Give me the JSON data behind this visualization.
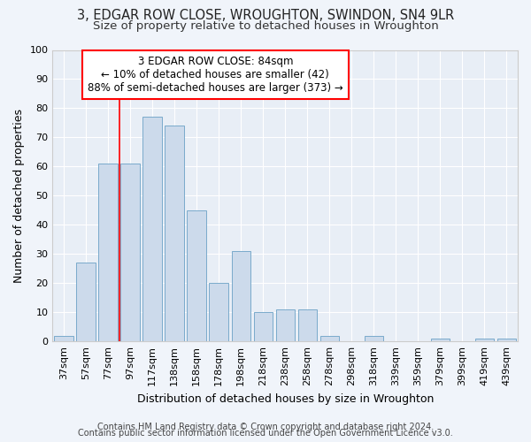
{
  "title": "3, EDGAR ROW CLOSE, WROUGHTON, SWINDON, SN4 9LR",
  "subtitle": "Size of property relative to detached houses in Wroughton",
  "xlabel": "Distribution of detached houses by size in Wroughton",
  "ylabel": "Number of detached properties",
  "bar_color": "#ccdaeb",
  "bar_edge_color": "#7aaacb",
  "background_color": "#f0f4fa",
  "plot_bg_color": "#e8eef6",
  "categories": [
    "37sqm",
    "57sqm",
    "77sqm",
    "97sqm",
    "117sqm",
    "138sqm",
    "158sqm",
    "178sqm",
    "198sqm",
    "218sqm",
    "238sqm",
    "258sqm",
    "278sqm",
    "298sqm",
    "318sqm",
    "339sqm",
    "359sqm",
    "379sqm",
    "399sqm",
    "419sqm",
    "439sqm"
  ],
  "values": [
    2,
    27,
    61,
    61,
    77,
    74,
    45,
    20,
    31,
    10,
    11,
    11,
    2,
    0,
    2,
    0,
    0,
    1,
    0,
    1,
    1
  ],
  "ylim": [
    0,
    100
  ],
  "yticks": [
    0,
    10,
    20,
    30,
    40,
    50,
    60,
    70,
    80,
    90,
    100
  ],
  "property_label": "3 EDGAR ROW CLOSE: 84sqm",
  "annotation_line1": "← 10% of detached houses are smaller (42)",
  "annotation_line2": "88% of semi-detached houses are larger (373) →",
  "vline_x_index": 2.5,
  "footer1": "Contains HM Land Registry data © Crown copyright and database right 2024.",
  "footer2": "Contains public sector information licensed under the Open Government Licence v3.0.",
  "grid_color": "#ffffff",
  "title_fontsize": 10.5,
  "subtitle_fontsize": 9.5,
  "axis_label_fontsize": 9,
  "tick_fontsize": 8,
  "footer_fontsize": 7,
  "annotation_fontsize": 8.5
}
